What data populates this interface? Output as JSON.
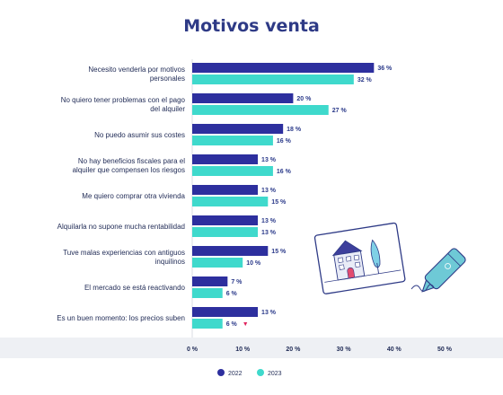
{
  "chart_data": {
    "type": "bar",
    "orientation": "horizontal",
    "title": "Motivos venta",
    "categories": [
      "Necesito venderla por motivos personales",
      "No quiero tener problemas con el pago del alquiler",
      "No puedo asumir sus costes",
      "No hay beneficios fiscales para el alquiler que compensen los riesgos",
      "Me quiero comprar otra vivienda",
      "Alquilarla no supone mucha rentabilidad",
      "Tuve malas experiencias con antiguos inquilinos",
      "El mercado se está reactivando",
      "Es un buen momento: los precios suben"
    ],
    "category_lines": [
      [
        "Necesito venderla por motivos",
        "personales"
      ],
      [
        "No quiero tener problemas con el pago",
        "del alquiler"
      ],
      [
        "No puedo asumir sus costes"
      ],
      [
        "No hay beneficios fiscales para el",
        "alquiler que compensen los riesgos"
      ],
      [
        "Me quiero comprar otra vivienda"
      ],
      [
        "Alquilarla no supone mucha rentabilidad"
      ],
      [
        "Tuve malas experiencias con antiguos",
        "inquilinos"
      ],
      [
        "El mercado se está reactivando"
      ],
      [
        "Es un buen momento: los precios suben"
      ]
    ],
    "series": [
      {
        "name": "2022",
        "color": "#2d2f9e",
        "values": [
          36,
          20,
          18,
          13,
          13,
          13,
          15,
          7,
          13
        ]
      },
      {
        "name": "2023",
        "color": "#3fd9cc",
        "values": [
          32,
          27,
          16,
          16,
          15,
          13,
          10,
          6,
          6
        ]
      }
    ],
    "value_labels": [
      [
        "36 %",
        "20 %",
        "18 %",
        "13 %",
        "13 %",
        "13 %",
        "15 %",
        "7 %",
        "13 %"
      ],
      [
        "32 %",
        "27 %",
        "16 %",
        "16 %",
        "15 %",
        "13 %",
        "10 %",
        "6 %",
        "6 %"
      ]
    ],
    "annotations": [
      {
        "series": 1,
        "index": 8,
        "marker": "▼",
        "color": "#e0245e"
      }
    ],
    "xlim": [
      0,
      50
    ],
    "xticks": [
      "0 %",
      "10 %",
      "20 %",
      "30 %",
      "40 %",
      "50 %"
    ],
    "grid": false,
    "legend_position": "bottom-center"
  },
  "illustration": {
    "icon": "house-photo-and-pen-icon"
  }
}
